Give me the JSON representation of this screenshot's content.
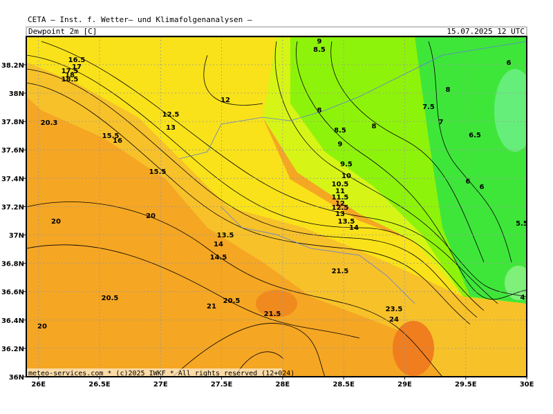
{
  "header": {
    "title": "CETA — Inst. f. Wetter— und Klimafolgenanalysen —",
    "field": "Dewpoint 2m [C]",
    "valid": "15.07.2025 12 UTC"
  },
  "axes": {
    "lon_labels": [
      "26E",
      "26.5E",
      "27E",
      "27.5E",
      "28E",
      "28.5E",
      "29E",
      "29.5E",
      "30E"
    ],
    "lat_labels": [
      "36N",
      "36.2N",
      "36.4N",
      "36.6N",
      "36.8N",
      "37N",
      "37.2N",
      "37.4N",
      "37.6N",
      "37.8N",
      "38N",
      "38.2N"
    ]
  },
  "contour_labels": [
    "16.5",
    "17",
    "17.5",
    "18",
    "18.5",
    "20.3",
    "15.5",
    "16",
    "12.5",
    "13",
    "12",
    "9",
    "8.5",
    "8",
    "8.5",
    "9",
    "9.5",
    "10",
    "10.5",
    "11",
    "11.5",
    "12",
    "12.5",
    "13",
    "13.5",
    "14",
    "8",
    "8",
    "7.5",
    "7",
    "6.5",
    "6",
    "6",
    "6",
    "5.5",
    "4",
    "20",
    "20",
    "20.5",
    "20",
    "21",
    "21.5",
    "24",
    "23.5",
    "21.5",
    "13.5",
    "14",
    "14.5",
    "15.5",
    "20.5"
  ],
  "footer": "meteo-services.com * (c)2025 IWKF * All rights reserved (12+024)"
}
